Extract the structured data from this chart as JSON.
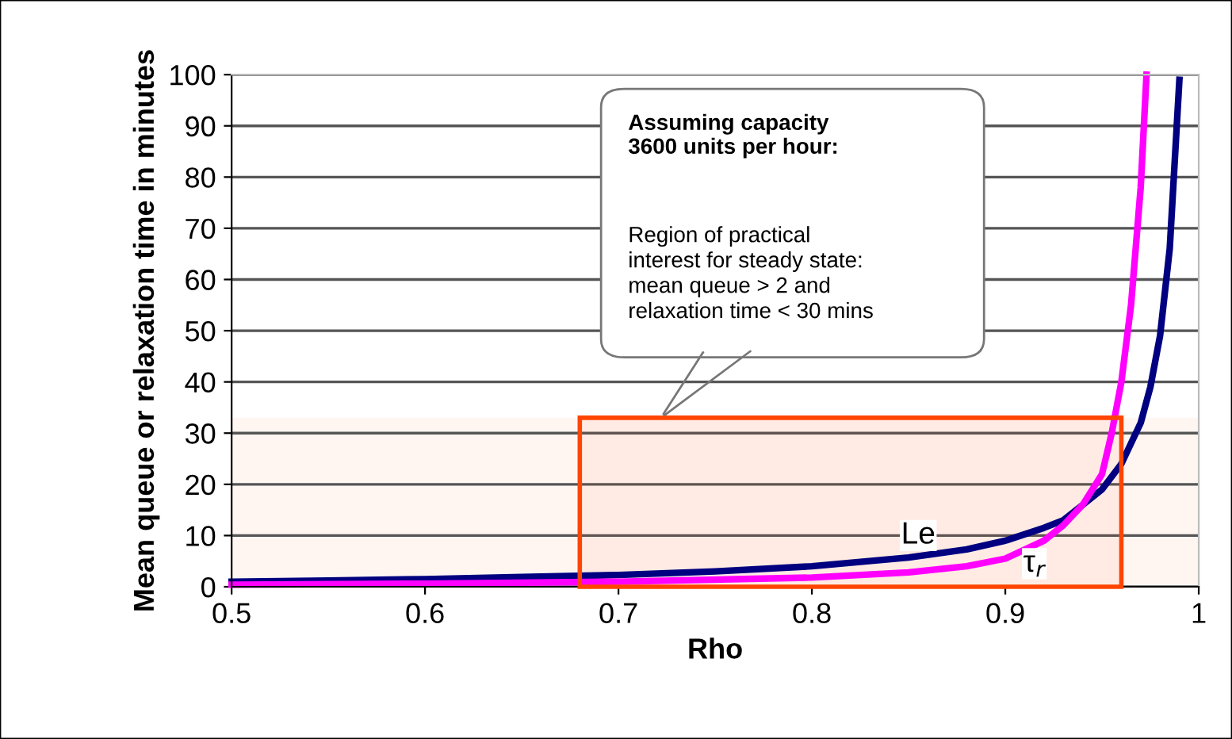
{
  "chart_data": {
    "type": "line",
    "xlabel": "Rho",
    "ylabel": "Mean queue or relaxation time in minutes",
    "xlim": [
      0.5,
      1
    ],
    "xticks": [
      0.5,
      0.6,
      0.7,
      0.8,
      0.9,
      {
        "value": 1,
        "label": "1"
      }
    ],
    "ylim": [
      0,
      100
    ],
    "yticks": [
      0,
      10,
      20,
      30,
      40,
      50,
      60,
      70,
      80,
      90,
      100
    ],
    "grid": "y",
    "legend": false,
    "marker": "none",
    "line_style": "solid",
    "series": [
      {
        "color": "#000080",
        "x": [
          0.5,
          0.55,
          0.6,
          0.65,
          0.7,
          0.75,
          0.8,
          0.85,
          0.88,
          0.9,
          0.92,
          0.93,
          0.94,
          0.95,
          0.96,
          0.97,
          0.975,
          0.98,
          0.985,
          0.99
        ],
        "values": [
          1,
          1.2,
          1.5,
          1.9,
          2.3,
          3,
          4,
          5.7,
          7.3,
          9,
          11.5,
          13,
          16,
          19,
          24,
          32,
          39,
          49,
          66,
          99
        ]
      },
      {
        "color": "#ff00ff",
        "x": [
          0.5,
          0.6,
          0.7,
          0.8,
          0.85,
          0.88,
          0.9,
          0.92,
          0.93,
          0.94,
          0.95,
          0.955,
          0.96,
          0.965,
          0.97,
          0.973
        ],
        "values": [
          0.4,
          0.6,
          1,
          1.8,
          2.8,
          4,
          5.5,
          9,
          12,
          16,
          22,
          30,
          40,
          55,
          78,
          100
        ]
      }
    ],
    "bands": [
      {
        "axis": "x",
        "from": 0.68,
        "to": 0.96,
        "color": "#ff4500"
      },
      {
        "axis": "y",
        "from": 0,
        "to": 33,
        "color": "#ff4500"
      }
    ],
    "annotations": [
      "Assuming capacity\n3600 units per hour:",
      "Region of practical\ninterest for steady state:\nmean queue > 2 and\nrelaxation time < 30 mins",
      {
        "text": "Le",
        "x": 0.855,
        "y": 10
      },
      {
        "text": "τ$_{r}$",
        "x": 0.915,
        "y": 4.5
      }
    ]
  }
}
